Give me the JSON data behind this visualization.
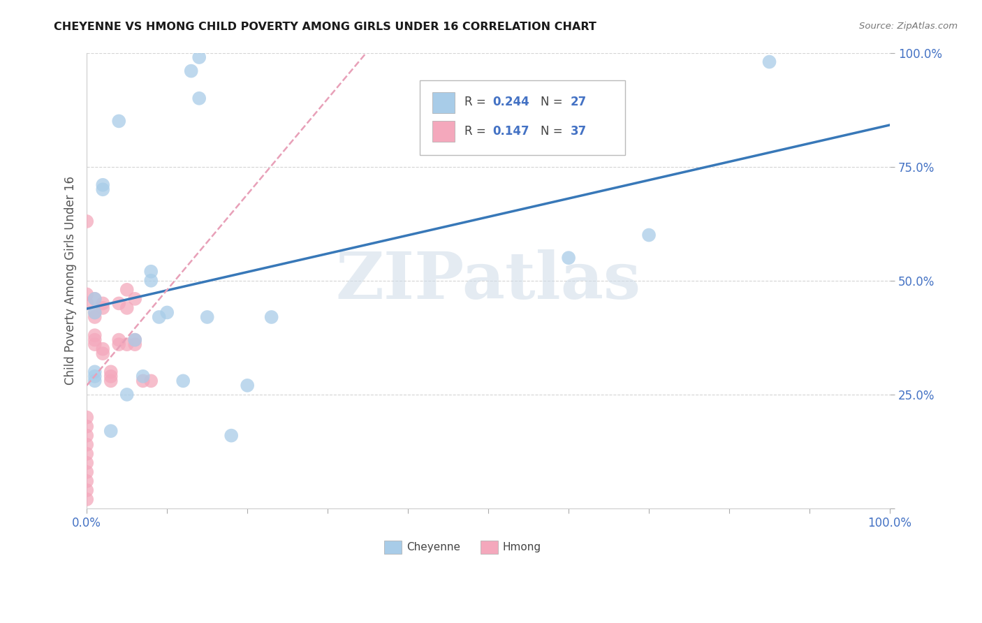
{
  "title": "CHEYENNE VS HMONG CHILD POVERTY AMONG GIRLS UNDER 16 CORRELATION CHART",
  "source": "Source: ZipAtlas.com",
  "ylabel": "Child Poverty Among Girls Under 16",
  "cheyenne_R": 0.244,
  "cheyenne_N": 27,
  "hmong_R": 0.147,
  "hmong_N": 37,
  "cheyenne_color": "#a8cce8",
  "hmong_color": "#f4a8bc",
  "cheyenne_line_color": "#3878b8",
  "hmong_line_color": "#e8a0b8",
  "watermark": "ZIPatlas",
  "legend_label_1": "Cheyenne",
  "legend_label_2": "Hmong",
  "cheyenne_x": [
    2,
    2,
    4,
    8,
    8,
    9,
    10,
    13,
    14,
    14,
    15,
    18,
    20,
    23,
    1,
    1,
    1,
    3,
    5,
    1,
    1,
    60,
    70,
    85,
    6,
    7,
    12
  ],
  "cheyenne_y": [
    70,
    71,
    85,
    52,
    50,
    42,
    43,
    96,
    99,
    90,
    42,
    16,
    27,
    42,
    28,
    29,
    30,
    17,
    25,
    46,
    43,
    55,
    60,
    98,
    37,
    29,
    28
  ],
  "hmong_x": [
    0,
    0,
    0,
    0,
    0,
    0,
    0,
    0,
    0,
    0,
    0,
    0,
    1,
    1,
    1,
    1,
    1,
    1,
    2,
    2,
    2,
    2,
    3,
    3,
    3,
    4,
    4,
    4,
    5,
    5,
    5,
    6,
    6,
    6,
    7,
    8,
    0
  ],
  "hmong_y": [
    2,
    4,
    6,
    8,
    10,
    12,
    14,
    16,
    18,
    20,
    63,
    45,
    36,
    37,
    38,
    42,
    43,
    46,
    34,
    35,
    44,
    45,
    28,
    29,
    30,
    36,
    37,
    45,
    44,
    48,
    36,
    36,
    37,
    46,
    28,
    28,
    47
  ],
  "xlim": [
    0,
    100
  ],
  "ylim": [
    0,
    100
  ],
  "x_ticks": [
    0,
    10,
    20,
    30,
    40,
    50,
    60,
    70,
    80,
    90,
    100
  ],
  "y_ticks_right": [
    0,
    25,
    50,
    75,
    100
  ],
  "x_tick_labels_show": [
    "0.0%",
    "",
    "",
    "",
    "",
    "",
    "",
    "",
    "",
    "",
    "100.0%"
  ],
  "y_tick_labels_right": [
    "",
    "25.0%",
    "50.0%",
    "75.0%",
    "100.0%"
  ]
}
